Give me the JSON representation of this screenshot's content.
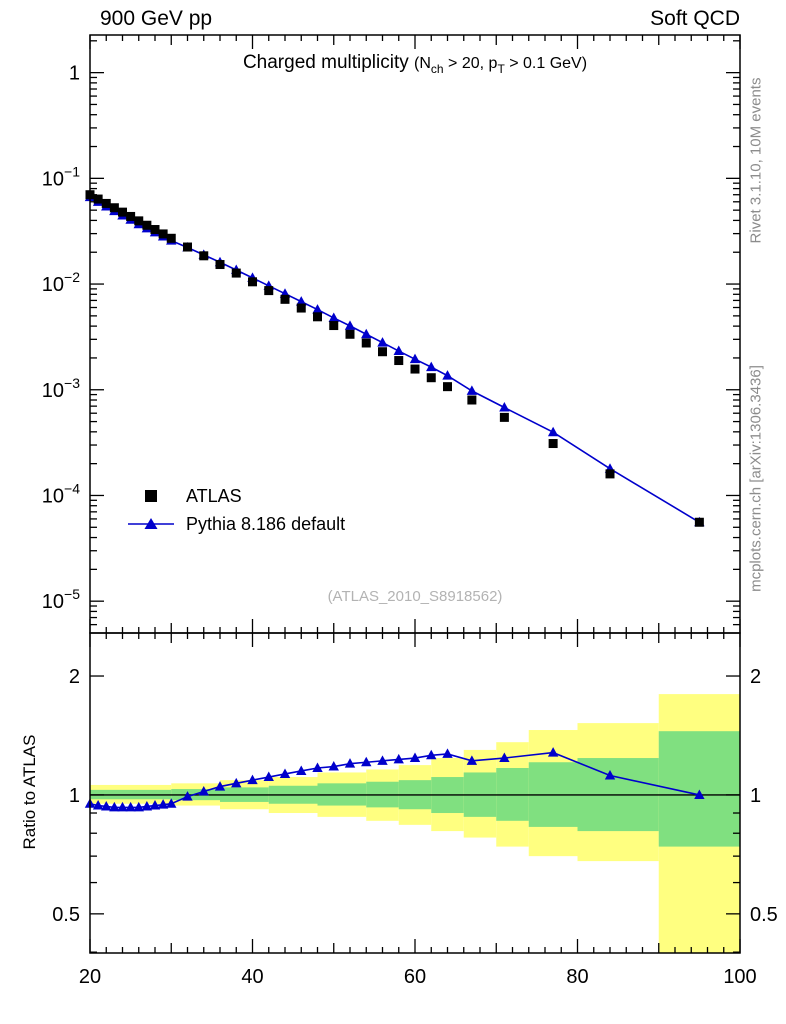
{
  "header": {
    "left": "900 GeV pp",
    "right": "Soft QCD"
  },
  "title": {
    "main": "Charged multiplicity",
    "paren_open": "(N",
    "sub_ch": "ch",
    "mid": " > 20, p",
    "sub_T": "T",
    "end": " > 0.1 GeV)"
  },
  "legend": {
    "items": [
      {
        "label": "ATLAS",
        "marker": "black-square"
      },
      {
        "label": "Pythia 8.186 default",
        "marker": "blue-line-triangle"
      }
    ]
  },
  "watermark": "(ATLAS_2010_S8918562)",
  "side_notes": {
    "top": "Rivet 3.1.10,  10M events",
    "bottom": "mcplots.cern.ch [arXiv:1306.3436]"
  },
  "ratio_axis_label": "Ratio to ATLAS",
  "colors": {
    "pythia_blue": "#0000cc",
    "atlas_black": "#000000",
    "band_yellow": "#ffff80",
    "band_green": "#80e080",
    "frame": "#000000",
    "gray_text": "#8c8c8c",
    "watermark_gray": "#b3b3b3"
  },
  "chart_data": {
    "type": "line",
    "title": "Charged multiplicity (N_ch > 20, p_T > 0.1 GeV)",
    "x": [
      20,
      21,
      22,
      23,
      24,
      25,
      26,
      27,
      28,
      29,
      30,
      32,
      34,
      36,
      38,
      40,
      42,
      44,
      46,
      48,
      50,
      52,
      54,
      56,
      58,
      60,
      62,
      64,
      67,
      71,
      77,
      84,
      95
    ],
    "main_panel": {
      "yscale": "log",
      "ylim": [
        5e-06,
        2.27
      ],
      "ytick_decades": [
        0,
        -1,
        -2,
        -3,
        -4,
        -5
      ],
      "xlim": [
        20,
        100
      ],
      "xticks": [
        20,
        40,
        60,
        80,
        100
      ],
      "series": [
        {
          "name": "ATLAS",
          "marker": "square",
          "line": false,
          "values": [
            0.07,
            0.0637,
            0.0579,
            0.0527,
            0.0479,
            0.0436,
            0.0396,
            0.036,
            0.0328,
            0.0298,
            0.0271,
            0.0224,
            0.0185,
            0.0153,
            0.0127,
            0.0105,
            0.00867,
            0.00717,
            0.00593,
            0.0049,
            0.00405,
            0.00335,
            0.00277,
            0.00229,
            0.00189,
            0.00157,
            0.0013,
            0.00107,
            0.0008,
            0.000548,
            0.00031,
            0.00016,
            5.58e-05
          ]
        },
        {
          "name": "Pythia 8.186 default",
          "marker": "triangle",
          "line": true,
          "note": "values = ATLAS * ratio"
        }
      ]
    },
    "ratio_panel": {
      "ylabel": "Ratio to ATLAS",
      "yscale": "log",
      "ylim": [
        0.398,
        2.57
      ],
      "yticks": [
        0.5,
        1,
        2
      ],
      "series": {
        "name": "Pythia 8.186 default / ATLAS",
        "values": [
          0.95,
          0.94,
          0.935,
          0.93,
          0.93,
          0.93,
          0.93,
          0.935,
          0.94,
          0.945,
          0.95,
          0.99,
          1.02,
          1.05,
          1.07,
          1.09,
          1.11,
          1.13,
          1.15,
          1.17,
          1.18,
          1.2,
          1.21,
          1.22,
          1.23,
          1.24,
          1.26,
          1.27,
          1.22,
          1.24,
          1.28,
          1.12,
          1.0
        ]
      },
      "reference_line": 1,
      "bands": {
        "yellow": {
          "segments": [
            [
              20,
              30,
              0.95,
              1.06
            ],
            [
              30,
              36,
              0.94,
              1.07
            ],
            [
              36,
              42,
              0.92,
              1.09
            ],
            [
              42,
              48,
              0.9,
              1.11
            ],
            [
              48,
              54,
              0.88,
              1.14
            ],
            [
              54,
              58,
              0.86,
              1.16
            ],
            [
              58,
              62,
              0.84,
              1.19
            ],
            [
              62,
              66,
              0.81,
              1.24
            ],
            [
              66,
              70,
              0.78,
              1.3
            ],
            [
              70,
              74,
              0.74,
              1.36
            ],
            [
              74,
              80,
              0.7,
              1.46
            ],
            [
              80,
              90,
              0.68,
              1.52
            ],
            [
              90,
              100,
              0.33,
              1.8
            ]
          ]
        },
        "green": {
          "segments": [
            [
              20,
              30,
              0.975,
              1.03
            ],
            [
              30,
              36,
              0.97,
              1.035
            ],
            [
              36,
              42,
              0.96,
              1.045
            ],
            [
              42,
              48,
              0.95,
              1.055
            ],
            [
              48,
              54,
              0.94,
              1.07
            ],
            [
              54,
              58,
              0.93,
              1.08
            ],
            [
              58,
              62,
              0.92,
              1.09
            ],
            [
              62,
              66,
              0.9,
              1.11
            ],
            [
              66,
              70,
              0.88,
              1.14
            ],
            [
              70,
              74,
              0.86,
              1.17
            ],
            [
              74,
              80,
              0.83,
              1.21
            ],
            [
              80,
              90,
              0.81,
              1.24
            ],
            [
              90,
              100,
              0.74,
              1.45
            ]
          ]
        }
      }
    }
  }
}
